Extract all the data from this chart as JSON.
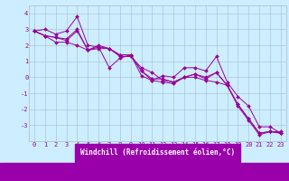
{
  "background_color": "#cceeff",
  "bottom_bar_color": "#9900aa",
  "grid_color": "#aabbcc",
  "line_color": "#990099",
  "marker_color": "#990099",
  "xlabel": "Windchill (Refroidissement éolien,°C)",
  "xlabel_fontsize": 5.5,
  "tick_fontsize": 5,
  "xlim": [
    -0.5,
    23.5
  ],
  "ylim": [
    -4.0,
    4.5
  ],
  "yticks": [
    -3,
    -2,
    -1,
    0,
    1,
    2,
    3,
    4
  ],
  "xticks": [
    0,
    1,
    2,
    3,
    4,
    5,
    6,
    7,
    8,
    9,
    10,
    11,
    12,
    13,
    14,
    15,
    16,
    17,
    18,
    19,
    20,
    21,
    22,
    23
  ],
  "series": [
    [
      2.9,
      3.0,
      2.7,
      2.9,
      3.8,
      2.0,
      1.9,
      0.6,
      1.2,
      1.4,
      0.1,
      -0.2,
      0.1,
      0.0,
      0.6,
      0.6,
      0.4,
      1.3,
      -0.3,
      -1.2,
      -1.8,
      -3.1,
      -3.1,
      -3.5
    ],
    [
      2.9,
      2.6,
      2.5,
      2.4,
      3.0,
      1.7,
      1.9,
      1.8,
      1.3,
      1.3,
      0.6,
      0.3,
      -0.2,
      -0.3,
      0.0,
      0.2,
      -0.1,
      0.3,
      -0.5,
      -1.7,
      -2.6,
      -3.5,
      -3.4,
      -3.5
    ],
    [
      2.9,
      2.6,
      2.2,
      2.2,
      2.0,
      1.7,
      1.8,
      1.8,
      1.4,
      1.4,
      0.4,
      -0.2,
      -0.3,
      -0.4,
      0.0,
      0.0,
      -0.2,
      -0.3,
      -0.5,
      -1.8,
      -2.7,
      -3.6,
      -3.4,
      -3.5
    ],
    [
      2.9,
      2.6,
      2.5,
      2.3,
      2.9,
      1.7,
      2.0,
      1.8,
      1.4,
      1.4,
      0.4,
      -0.1,
      -0.1,
      -0.3,
      0.0,
      0.2,
      0.0,
      0.3,
      -0.5,
      -1.7,
      -2.6,
      -3.5,
      -3.4,
      -3.4
    ]
  ]
}
